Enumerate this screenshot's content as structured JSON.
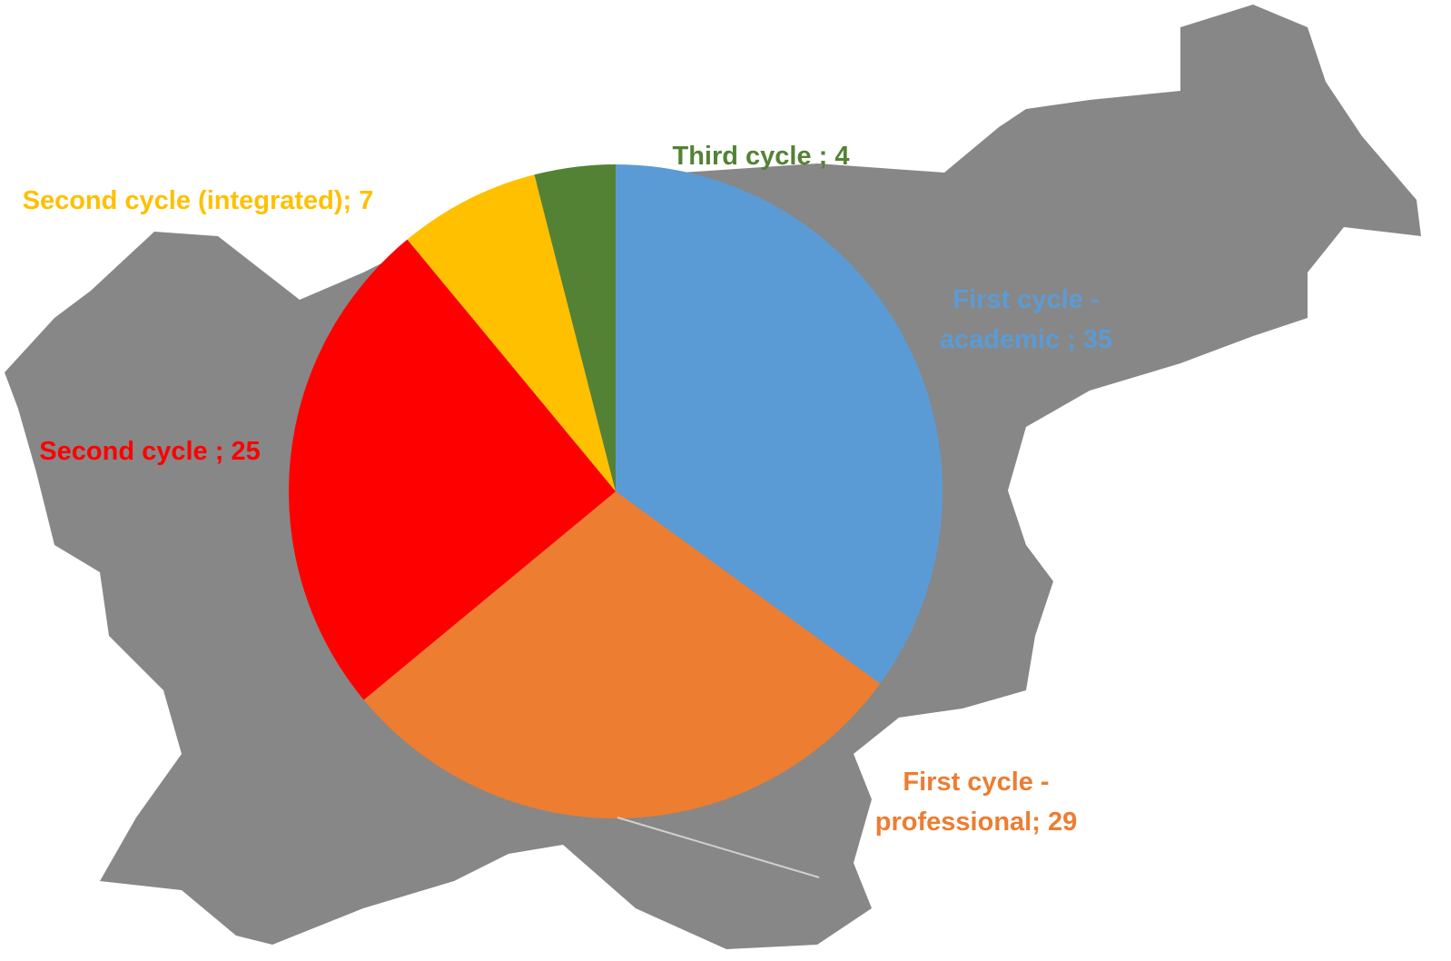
{
  "chart_data": {
    "type": "pie",
    "values": [
      35,
      29,
      25,
      7,
      4
    ],
    "value_labels": [
      "First cycle - academic ; 35",
      "First cycle - professional; 29",
      "Second cycle ; 25",
      "Second cycle (integrated); 7",
      "Third cycle ; 4"
    ],
    "colors": [
      "#5b9bd5",
      "#ed7d31",
      "#ff0000",
      "#ffc000",
      "#548235"
    ]
  }
}
